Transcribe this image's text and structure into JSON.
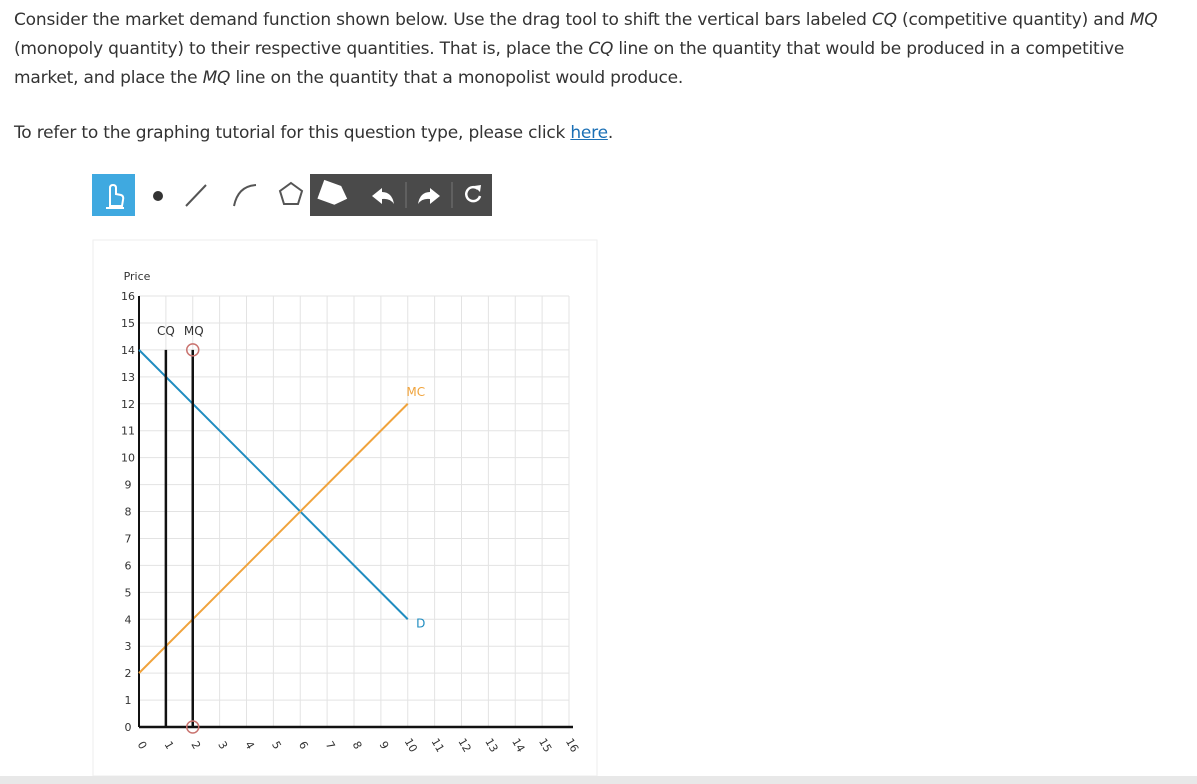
{
  "question": {
    "segments": [
      {
        "text": "Consider the market demand function shown below. Use the drag tool to shift the vertical bars labeled "
      },
      {
        "text": "CQ",
        "italic": true
      },
      {
        "text": " (competitive quantity) and "
      },
      {
        "text": "MQ",
        "italic": true
      },
      {
        "text": " (monopoly quantity) to their respective quantities. That is, place the "
      },
      {
        "text": "CQ",
        "italic": true
      },
      {
        "text": " line on the quantity that would be produced in a competitive market, and place the "
      },
      {
        "text": "MQ",
        "italic": true
      },
      {
        "text": " line on the quantity that a monopolist would produce."
      }
    ]
  },
  "tutorial": {
    "before": "To refer to the graphing tutorial for this question type, please click ",
    "link": "here",
    "after": "."
  },
  "chart_data": {
    "type": "line",
    "ylabel": "Price",
    "xlim": [
      0,
      16
    ],
    "ylim": [
      0,
      16
    ],
    "xticks": [
      0,
      1,
      2,
      3,
      4,
      5,
      6,
      7,
      8,
      9,
      10,
      11,
      12,
      13,
      14,
      15,
      16
    ],
    "yticks": [
      0,
      1,
      2,
      3,
      4,
      5,
      6,
      7,
      8,
      9,
      10,
      11,
      12,
      13,
      14,
      15,
      16
    ],
    "grid": true,
    "series": [
      {
        "name": "D",
        "color": "#1f8cc0",
        "x": [
          0,
          10
        ],
        "values": [
          14,
          4
        ]
      },
      {
        "name": "MC",
        "color": "#f0a33c",
        "x": [
          0,
          10
        ],
        "values": [
          2,
          12
        ]
      }
    ],
    "vlines": [
      {
        "name": "CQ",
        "color": "#111111",
        "x": 1,
        "values": [
          0,
          14
        ]
      },
      {
        "name": "MQ",
        "color": "#111111",
        "x": 2,
        "values": [
          0,
          14
        ]
      }
    ]
  }
}
